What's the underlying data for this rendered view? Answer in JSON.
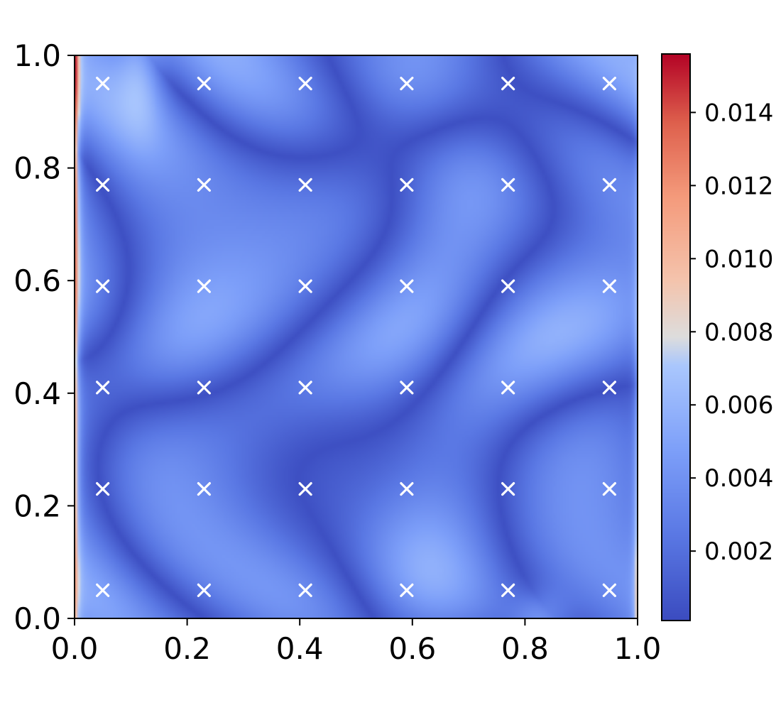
{
  "chart_data": {
    "type": "heatmap",
    "title": "",
    "xlabel": "",
    "ylabel": "",
    "xlim": [
      0.0,
      1.0
    ],
    "ylim": [
      0.0,
      1.0
    ],
    "x_ticks": [
      "0.0",
      "0.2",
      "0.4",
      "0.6",
      "0.8",
      "1.0"
    ],
    "y_ticks": [
      "0.0",
      "0.2",
      "0.4",
      "0.6",
      "0.8",
      "1.0"
    ],
    "colormap": "coolwarm",
    "colorbar": {
      "min": 0.0001,
      "max": 0.0156,
      "ticks": [
        "0.002",
        "0.004",
        "0.006",
        "0.008",
        "0.010",
        "0.012",
        "0.014"
      ],
      "tick_values": [
        0.002,
        0.004,
        0.006,
        0.008,
        0.01,
        0.012,
        0.014
      ]
    },
    "marker_style": "x",
    "marker_color": "#ffffff",
    "sample_points": {
      "x": [
        0.05,
        0.23,
        0.41,
        0.59,
        0.77,
        0.95
      ],
      "y": [
        0.05,
        0.23,
        0.41,
        0.59,
        0.77,
        0.95
      ]
    },
    "grid": false,
    "legend": "none"
  }
}
